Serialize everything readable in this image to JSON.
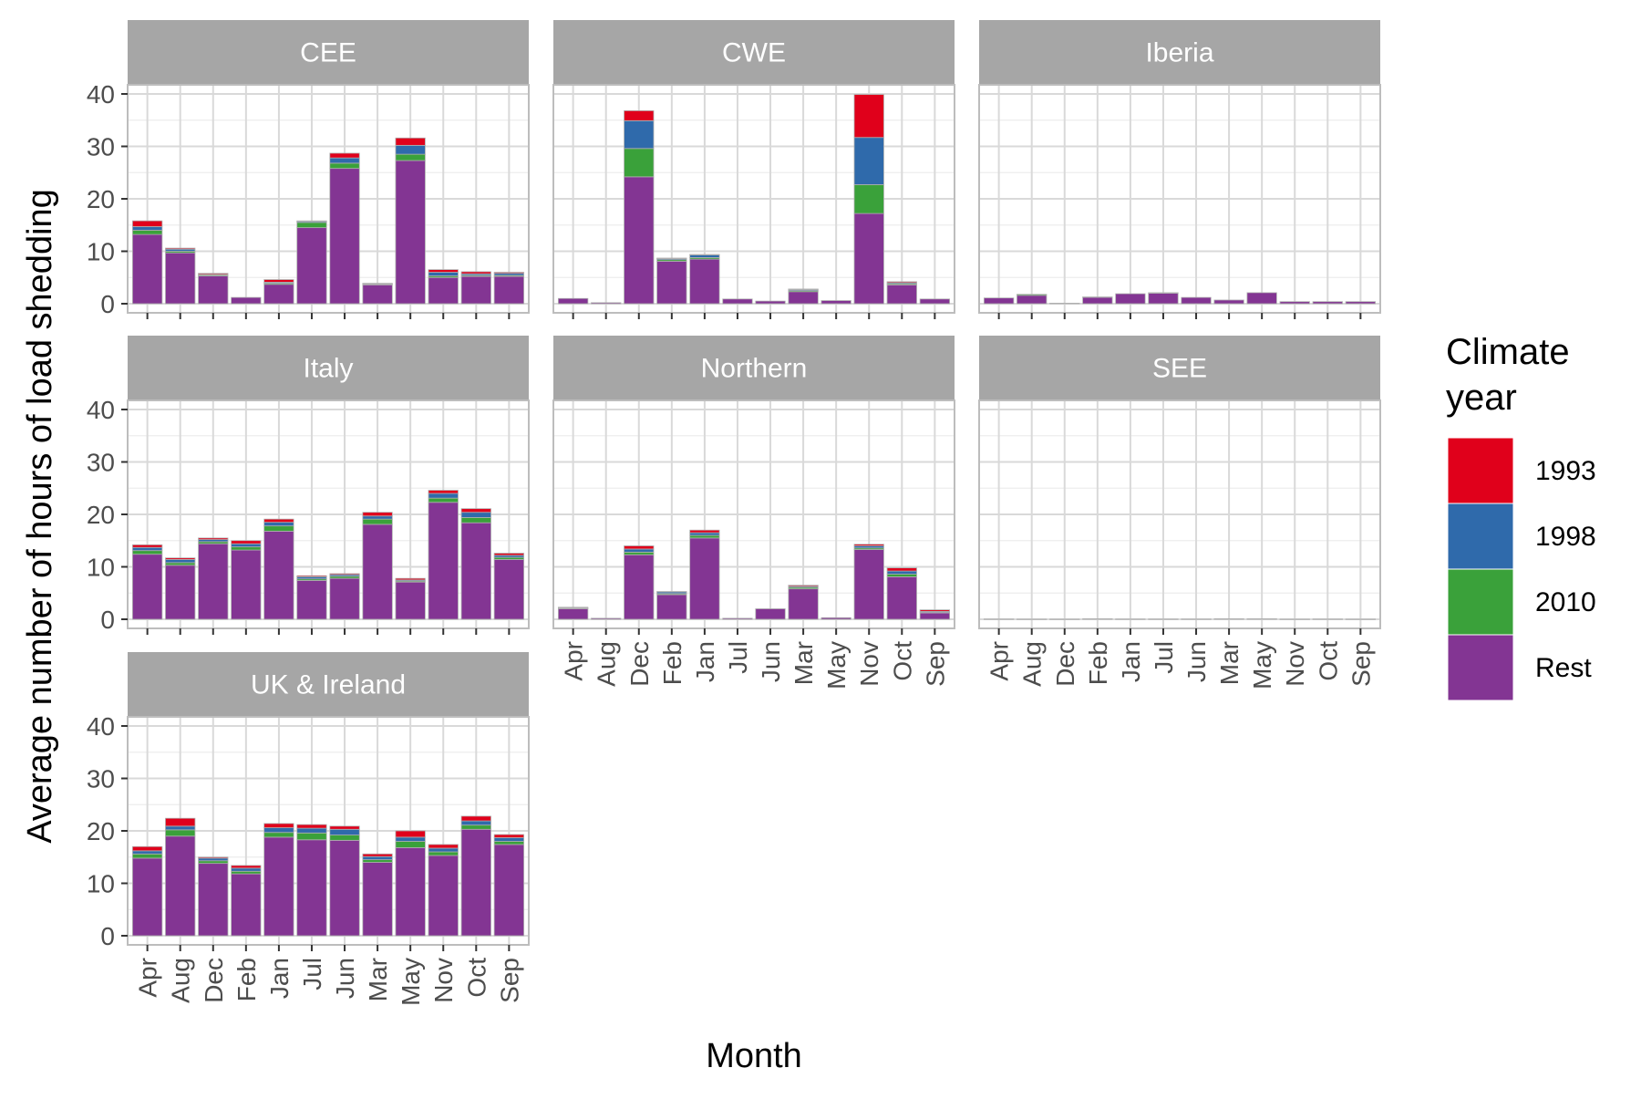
{
  "chart_data": {
    "type": "bar",
    "stacked": true,
    "xlabel": "Month",
    "ylabel": "Average number of hours of load shedding",
    "ylim": [
      0,
      40
    ],
    "y_ticks": [
      0,
      10,
      20,
      30,
      40
    ],
    "categories": [
      "Apr",
      "Aug",
      "Dec",
      "Feb",
      "Jan",
      "Jul",
      "Jun",
      "Mar",
      "May",
      "Nov",
      "Oct",
      "Sep"
    ],
    "legend": {
      "title": "Climate\nyear",
      "placement": "right",
      "items": [
        {
          "label": "1993",
          "color": "#e0001b"
        },
        {
          "label": "1998",
          "color": "#2f6aab"
        },
        {
          "label": "2010",
          "color": "#3aa13a"
        },
        {
          "label": "Rest",
          "color": "#833593"
        }
      ]
    },
    "panels": [
      {
        "name": "CEE",
        "series": [
          {
            "name": "Rest",
            "values": [
              13.2,
              9.7,
              5.3,
              1.2,
              3.7,
              14.5,
              25.8,
              3.6,
              27.3,
              5.0,
              5.2,
              5.2
            ]
          },
          {
            "name": "2010",
            "values": [
              0.8,
              0.3,
              0.2,
              0.0,
              0.2,
              1.0,
              1.0,
              0.1,
              1.2,
              0.3,
              0.2,
              0.2
            ]
          },
          {
            "name": "1998",
            "values": [
              0.7,
              0.4,
              0.1,
              0.0,
              0.2,
              0.2,
              1.0,
              0.1,
              1.7,
              0.7,
              0.3,
              0.4
            ]
          },
          {
            "name": "1993",
            "values": [
              1.1,
              0.2,
              0.2,
              0.0,
              0.5,
              0.1,
              0.9,
              0.1,
              1.4,
              0.5,
              0.4,
              0.2
            ]
          }
        ]
      },
      {
        "name": "CWE",
        "series": [
          {
            "name": "Rest",
            "values": [
              1.0,
              0.2,
              24.2,
              8.1,
              8.5,
              0.9,
              0.5,
              2.3,
              0.6,
              17.2,
              3.6,
              0.9
            ]
          },
          {
            "name": "2010",
            "values": [
              0.0,
              0.0,
              5.4,
              0.3,
              0.3,
              0.0,
              0.0,
              0.2,
              0.0,
              5.5,
              0.2,
              0.0
            ]
          },
          {
            "name": "1998",
            "values": [
              0.0,
              0.0,
              5.3,
              0.2,
              0.5,
              0.0,
              0.0,
              0.2,
              0.0,
              9.0,
              0.2,
              0.0
            ]
          },
          {
            "name": "1993",
            "values": [
              0.0,
              0.0,
              1.9,
              0.1,
              0.1,
              0.0,
              0.0,
              0.1,
              0.0,
              8.2,
              0.2,
              0.0
            ]
          }
        ]
      },
      {
        "name": "Iberia",
        "series": [
          {
            "name": "Rest",
            "values": [
              1.1,
              1.6,
              0.1,
              1.2,
              1.9,
              2.0,
              1.2,
              0.7,
              2.1,
              0.4,
              0.4,
              0.4
            ]
          },
          {
            "name": "2010",
            "values": [
              0.0,
              0.2,
              0.0,
              0.1,
              0.0,
              0.1,
              0.0,
              0.0,
              0.0,
              0.0,
              0.0,
              0.0
            ]
          },
          {
            "name": "1998",
            "values": [
              0.0,
              0.0,
              0.0,
              0.0,
              0.0,
              0.0,
              0.0,
              0.0,
              0.0,
              0.0,
              0.0,
              0.0
            ]
          },
          {
            "name": "1993",
            "values": [
              0.0,
              0.0,
              0.0,
              0.0,
              0.0,
              0.0,
              0.0,
              0.0,
              0.0,
              0.0,
              0.0,
              0.0
            ]
          }
        ]
      },
      {
        "name": "Italy",
        "series": [
          {
            "name": "Rest",
            "values": [
              12.4,
              10.3,
              14.4,
              13.2,
              16.8,
              7.4,
              7.8,
              18.1,
              7.1,
              22.3,
              18.4,
              11.4
            ]
          },
          {
            "name": "2010",
            "values": [
              0.7,
              0.5,
              0.4,
              0.6,
              1.0,
              0.3,
              0.4,
              1.0,
              0.2,
              0.8,
              1.0,
              0.4
            ]
          },
          {
            "name": "1998",
            "values": [
              0.6,
              0.6,
              0.4,
              0.6,
              0.7,
              0.4,
              0.3,
              0.6,
              0.2,
              0.9,
              1.0,
              0.4
            ]
          },
          {
            "name": "1993",
            "values": [
              0.5,
              0.3,
              0.3,
              0.6,
              0.6,
              0.2,
              0.2,
              0.7,
              0.3,
              0.6,
              0.7,
              0.4
            ]
          }
        ]
      },
      {
        "name": "Northern",
        "series": [
          {
            "name": "Rest",
            "values": [
              2.0,
              0.2,
              12.3,
              4.7,
              15.5,
              0.2,
              2.0,
              5.8,
              0.3,
              13.3,
              8.1,
              1.2
            ]
          },
          {
            "name": "2010",
            "values": [
              0.1,
              0.0,
              0.5,
              0.2,
              0.5,
              0.0,
              0.0,
              0.3,
              0.0,
              0.3,
              0.5,
              0.1
            ]
          },
          {
            "name": "1998",
            "values": [
              0.1,
              0.0,
              0.6,
              0.3,
              0.5,
              0.0,
              0.0,
              0.2,
              0.0,
              0.4,
              0.6,
              0.2
            ]
          },
          {
            "name": "1993",
            "values": [
              0.1,
              0.0,
              0.6,
              0.1,
              0.5,
              0.0,
              0.0,
              0.2,
              0.0,
              0.3,
              0.6,
              0.3
            ]
          }
        ]
      },
      {
        "name": "SEE",
        "series": [
          {
            "name": "Rest",
            "values": [
              0.05,
              0.03,
              0.03,
              0.1,
              0.05,
              0.05,
              0.05,
              0.1,
              0.1,
              0.03,
              0.05,
              0.03
            ]
          },
          {
            "name": "2010",
            "values": [
              0.0,
              0.0,
              0.0,
              0.0,
              0.0,
              0.0,
              0.0,
              0.0,
              0.0,
              0.0,
              0.0,
              0.0
            ]
          },
          {
            "name": "1998",
            "values": [
              0.0,
              0.0,
              0.0,
              0.0,
              0.0,
              0.0,
              0.0,
              0.0,
              0.0,
              0.0,
              0.0,
              0.0
            ]
          },
          {
            "name": "1993",
            "values": [
              0.0,
              0.0,
              0.0,
              0.0,
              0.0,
              0.0,
              0.0,
              0.0,
              0.0,
              0.0,
              0.0,
              0.0
            ]
          }
        ]
      },
      {
        "name": "UK & Ireland",
        "series": [
          {
            "name": "Rest",
            "values": [
              14.8,
              19.0,
              13.8,
              11.8,
              18.8,
              18.3,
              18.2,
              14.0,
              16.8,
              15.3,
              20.3,
              17.4
            ]
          },
          {
            "name": "2010",
            "values": [
              0.8,
              1.2,
              0.5,
              0.5,
              0.9,
              1.3,
              1.0,
              0.5,
              1.2,
              0.7,
              0.8,
              0.6
            ]
          },
          {
            "name": "1998",
            "values": [
              0.6,
              0.7,
              0.5,
              0.6,
              0.9,
              0.9,
              1.1,
              0.6,
              0.8,
              0.7,
              0.8,
              0.7
            ]
          },
          {
            "name": "1993",
            "values": [
              0.8,
              1.5,
              0.2,
              0.5,
              0.8,
              0.7,
              0.6,
              0.5,
              1.2,
              0.7,
              0.9,
              0.6
            ]
          }
        ]
      }
    ]
  }
}
